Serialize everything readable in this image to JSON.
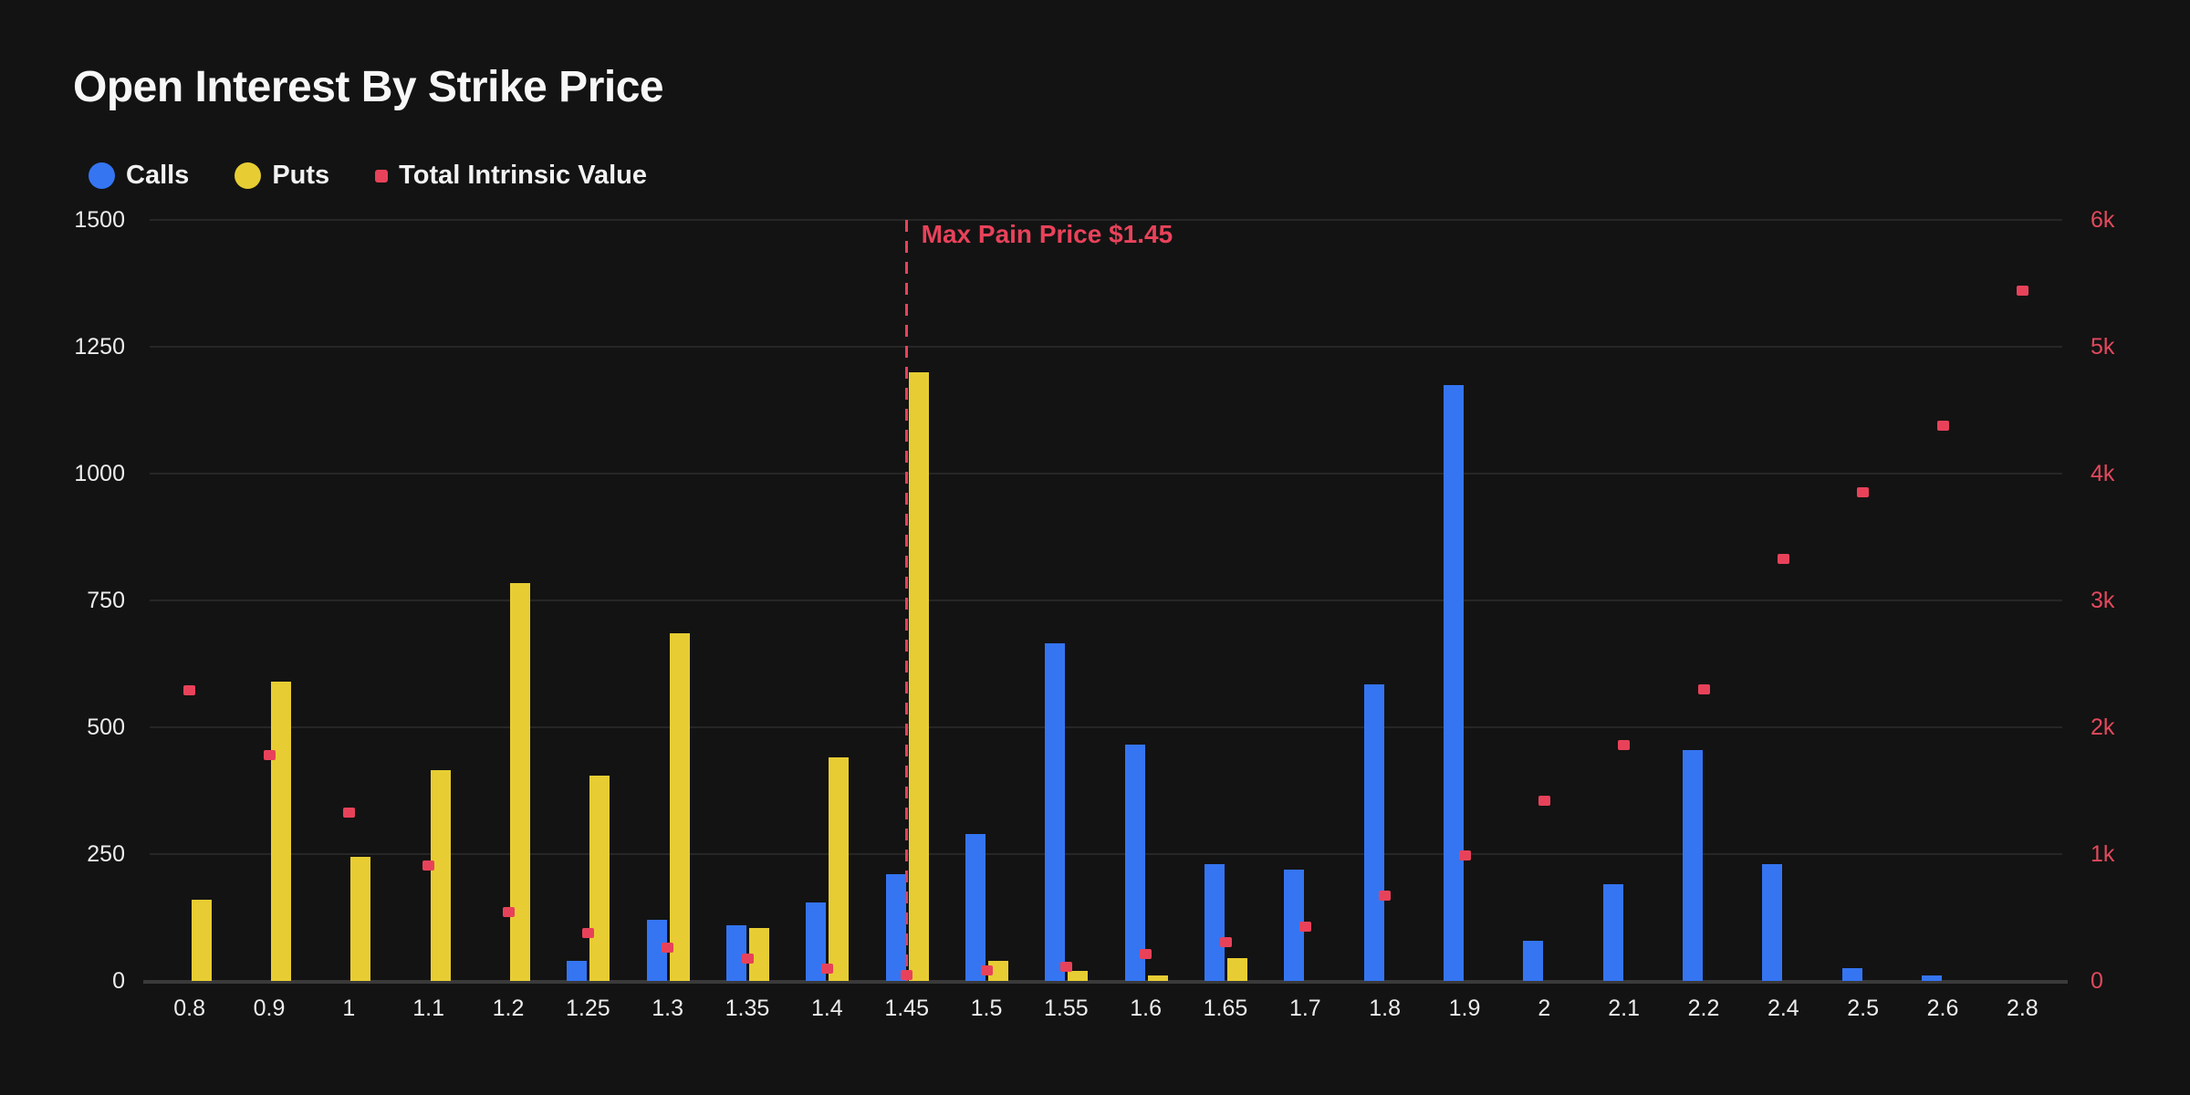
{
  "title": "Open Interest By Strike Price",
  "legend": {
    "calls_label": "Calls",
    "puts_label": "Puts",
    "tiv_label": "Total Intrinsic Value"
  },
  "colors": {
    "background": "#131313",
    "calls": "#3575F2",
    "puts": "#E7CD33",
    "tiv": "#E8425A",
    "gridline": "#262626",
    "axis_line": "#3A3A3A",
    "text": "#ECECEC"
  },
  "chart_data": {
    "type": "bar",
    "title": "Open Interest By Strike Price",
    "grid": "horizontal",
    "legend_position": "top-left",
    "categories": [
      "0.8",
      "0.9",
      "1",
      "1.1",
      "1.2",
      "1.25",
      "1.3",
      "1.35",
      "1.4",
      "1.45",
      "1.5",
      "1.55",
      "1.6",
      "1.65",
      "1.7",
      "1.8",
      "1.9",
      "2",
      "2.1",
      "2.2",
      "2.4",
      "2.5",
      "2.6",
      "2.8"
    ],
    "series": [
      {
        "name": "Calls",
        "type": "bar",
        "axis": "left",
        "color": "#3575F2",
        "values": [
          0,
          0,
          0,
          0,
          0,
          40,
          120,
          110,
          155,
          210,
          290,
          665,
          465,
          230,
          220,
          585,
          1175,
          80,
          190,
          455,
          230,
          25,
          10,
          0
        ]
      },
      {
        "name": "Puts",
        "type": "bar",
        "axis": "left",
        "color": "#E7CD33",
        "values": [
          160,
          590,
          245,
          415,
          785,
          405,
          685,
          105,
          440,
          1200,
          40,
          20,
          10,
          45,
          0,
          0,
          0,
          0,
          0,
          0,
          0,
          0,
          0,
          0
        ]
      },
      {
        "name": "Total Intrinsic Value",
        "type": "scatter",
        "axis": "right",
        "color": "#E8425A",
        "values": [
          2290,
          1780,
          1330,
          910,
          545,
          380,
          265,
          175,
          100,
          45,
          80,
          115,
          210,
          305,
          425,
          670,
          990,
          1420,
          1860,
          2300,
          3330,
          3850,
          4380,
          5440
        ]
      }
    ],
    "left_axis": {
      "min": 0,
      "max": 1500,
      "ticks": [
        0,
        250,
        500,
        750,
        1000,
        1250,
        1500
      ],
      "tick_labels": [
        "0",
        "250",
        "500",
        "750",
        "1000",
        "1250",
        "1500"
      ]
    },
    "right_axis": {
      "min": 0,
      "max": 6000,
      "ticks": [
        0,
        1000,
        2000,
        3000,
        4000,
        5000,
        6000
      ],
      "tick_labels": [
        "0",
        "1k",
        "2k",
        "3k",
        "4k",
        "5k",
        "6k"
      ]
    },
    "annotation": {
      "text": "Max Pain Price $1.45",
      "category": "1.45"
    }
  }
}
